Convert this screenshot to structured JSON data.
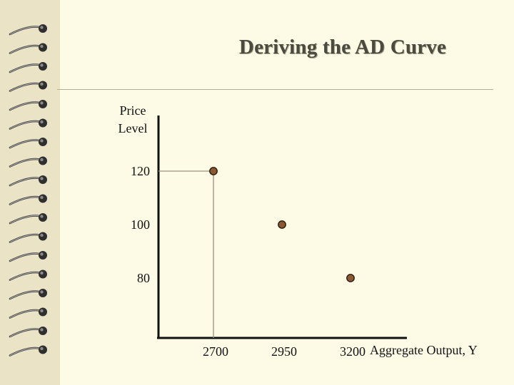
{
  "slide": {
    "title": "Deriving the AD Curve"
  },
  "colors": {
    "background": "#fdfbe6",
    "binding_strip": "#ebe3c5",
    "point_fill": "#8b5a32",
    "guide_line": "#9a8f7a",
    "axis": "#111111",
    "title_text": "#4b4a3e"
  },
  "chart_data": {
    "type": "scatter",
    "title": "",
    "ylabel_lines": [
      "Price",
      "Level"
    ],
    "xlabel": "Aggregate Output, Y",
    "x_ticks": [
      2700,
      2950,
      3200
    ],
    "y_ticks": [
      80,
      100,
      120
    ],
    "points": [
      {
        "x": 2700,
        "y": 120
      },
      {
        "x": 2950,
        "y": 100
      },
      {
        "x": 3200,
        "y": 80
      }
    ],
    "guide_to_point_index": 0,
    "grid": false
  }
}
